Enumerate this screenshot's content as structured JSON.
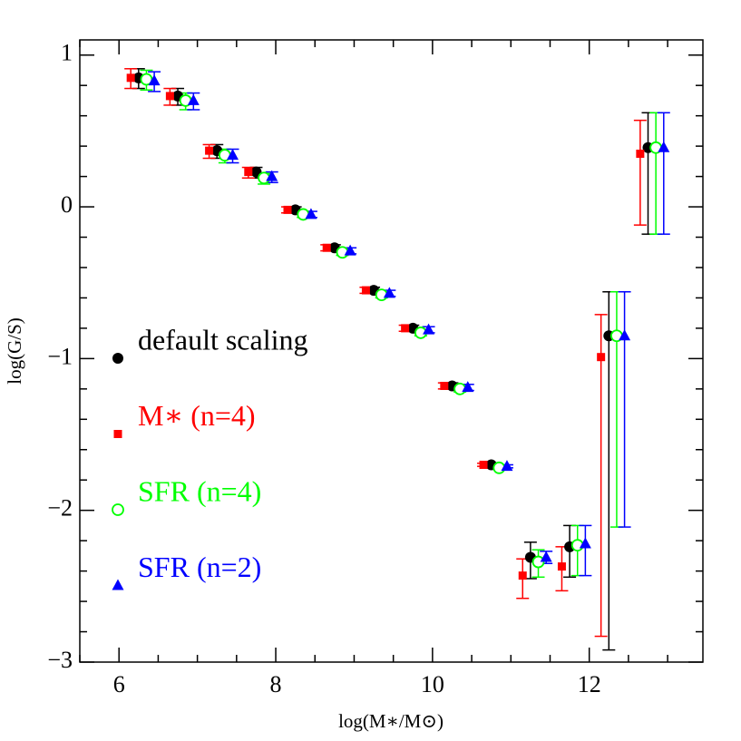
{
  "chart_data": {
    "type": "scatter",
    "x_label": "log(M∗/M⊙)",
    "y_label": "log(G/S)",
    "xlim": [
      5.5,
      13.45
    ],
    "ylim": [
      -3,
      1.1
    ],
    "xticks": [
      6,
      8,
      10,
      12
    ],
    "yticks": [
      {
        "value": -3,
        "label": "−3"
      },
      {
        "value": -2,
        "label": "−2"
      },
      {
        "value": -1,
        "label": "−1"
      },
      0,
      1
    ],
    "x_minor_ticks": [
      5.5,
      6.5,
      7,
      7.5,
      8.5,
      9,
      9.5,
      10.5,
      11,
      11.5,
      12.5,
      13
    ],
    "y_minor_ticks": [
      -2.8,
      -2.6,
      -2.4,
      -2.2,
      -1.8,
      -1.6,
      -1.4,
      -1.2,
      -0.8,
      -0.6,
      -0.4,
      -0.2,
      0.2,
      0.4,
      0.6,
      0.8,
      1.0
    ],
    "series": [
      {
        "name": "default scaling",
        "color": "#000000",
        "marker": "filled-circle",
        "x": [
          6.25,
          6.75,
          7.25,
          7.75,
          8.25,
          8.75,
          9.25,
          9.75,
          10.25,
          10.75,
          11.25,
          11.75,
          12.25,
          12.75
        ],
        "values": [
          0.85,
          0.73,
          0.37,
          0.23,
          -0.02,
          -0.27,
          -0.55,
          -0.8,
          -1.18,
          -1.7,
          -2.31,
          -2.24,
          -0.85,
          0.39
        ],
        "err_minus": [
          0.07,
          0.06,
          0.05,
          0.04,
          0.02,
          0.02,
          0.02,
          0.02,
          0.02,
          0.01,
          0.14,
          0.2,
          2.07,
          0.57
        ],
        "err_plus": [
          0.06,
          0.05,
          0.04,
          0.03,
          0.02,
          0.02,
          0.02,
          0.02,
          0.02,
          0.01,
          0.1,
          0.14,
          0.29,
          0.23
        ]
      },
      {
        "name": "M∗ (n=4)",
        "color": "#ff0000",
        "marker": "square",
        "x": [
          6.15,
          6.65,
          7.15,
          7.65,
          8.15,
          8.65,
          9.15,
          9.65,
          10.15,
          10.65,
          11.15,
          11.65,
          12.15,
          12.65
        ],
        "values": [
          0.85,
          0.73,
          0.37,
          0.23,
          -0.02,
          -0.27,
          -0.55,
          -0.8,
          -1.18,
          -1.7,
          -2.43,
          -2.37,
          -0.99,
          0.35
        ],
        "err_minus": [
          0.07,
          0.06,
          0.05,
          0.04,
          0.02,
          0.02,
          0.02,
          0.02,
          0.02,
          0.01,
          0.15,
          0.16,
          1.84,
          0.47
        ],
        "err_plus": [
          0.06,
          0.05,
          0.04,
          0.03,
          0.02,
          0.02,
          0.02,
          0.02,
          0.02,
          0.01,
          0.11,
          0.13,
          0.28,
          0.22
        ]
      },
      {
        "name": "SFR (n=4)",
        "color": "#00ff00",
        "marker": "open-circle",
        "x": [
          6.35,
          6.85,
          7.35,
          7.85,
          8.35,
          8.85,
          9.35,
          9.85,
          10.35,
          10.85,
          11.35,
          11.85,
          12.35,
          12.85
        ],
        "values": [
          0.84,
          0.7,
          0.34,
          0.19,
          -0.05,
          -0.3,
          -0.58,
          -0.83,
          -1.2,
          -1.72,
          -2.34,
          -2.23,
          -0.85,
          0.39
        ],
        "err_minus": [
          0.07,
          0.06,
          0.05,
          0.04,
          0.02,
          0.02,
          0.02,
          0.02,
          0.02,
          0.01,
          0.1,
          0.2,
          1.26,
          0.57
        ],
        "err_plus": [
          0.06,
          0.05,
          0.04,
          0.03,
          0.02,
          0.02,
          0.02,
          0.02,
          0.02,
          0.01,
          0.08,
          0.13,
          0.29,
          0.23
        ]
      },
      {
        "name": "SFR (n=2)",
        "color": "#0000ff",
        "marker": "triangle",
        "x": [
          6.45,
          6.95,
          7.45,
          7.95,
          8.45,
          8.95,
          9.45,
          9.95,
          10.45,
          10.95,
          11.45,
          11.95,
          12.45,
          12.95
        ],
        "values": [
          0.83,
          0.7,
          0.34,
          0.2,
          -0.05,
          -0.29,
          -0.57,
          -0.81,
          -1.19,
          -1.71,
          -2.31,
          -2.22,
          -0.85,
          0.39
        ],
        "err_minus": [
          0.07,
          0.06,
          0.05,
          0.04,
          0.02,
          0.02,
          0.02,
          0.02,
          0.02,
          0.01,
          0.04,
          0.21,
          1.26,
          0.57
        ],
        "err_plus": [
          0.06,
          0.05,
          0.04,
          0.03,
          0.02,
          0.02,
          0.02,
          0.02,
          0.02,
          0.01,
          0.04,
          0.12,
          0.29,
          0.23
        ]
      }
    ]
  }
}
